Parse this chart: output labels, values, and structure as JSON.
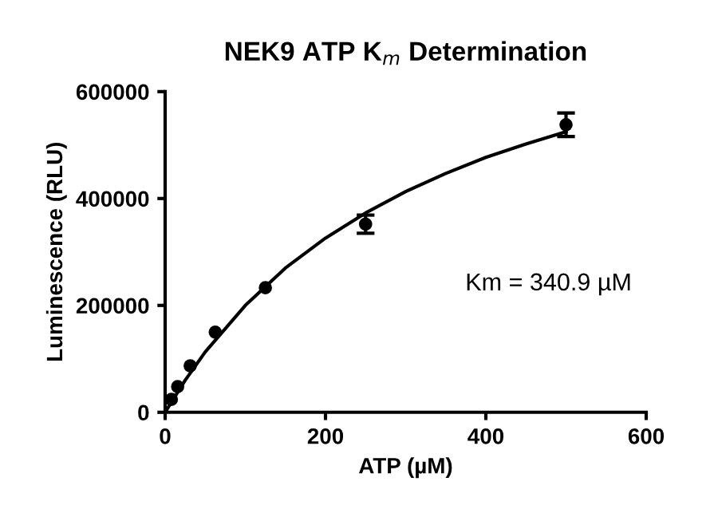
{
  "chart_data": {
    "type": "scatter",
    "title": "NEK9 ATP K$_{m}$ Determination",
    "xlabel": "ATP (µM)",
    "ylabel": "Luminescence (RLU)",
    "xlim": [
      0,
      600
    ],
    "xticks": [
      0,
      200,
      400,
      600
    ],
    "ylim": [
      0,
      600000
    ],
    "yticks": [
      0,
      200000,
      400000,
      600000
    ],
    "grid": false,
    "marker": "circle",
    "annotations": [
      "Km = 340.9 µM"
    ],
    "series": [
      {
        "color": "#000000",
        "x": [
          7.8,
          15.6,
          31.25,
          62.5,
          125,
          250,
          500
        ],
        "values": [
          24000,
          48000,
          87000,
          150000,
          233000,
          352000,
          538000
        ],
        "errors": [
          null,
          null,
          null,
          null,
          null,
          17000,
          22000
        ]
      },
      {
        "type": "line",
        "color": "#000000",
        "marker": "none",
        "line_style": "solid",
        "x": [
          0,
          25,
          50,
          100,
          150,
          200,
          250,
          300,
          350,
          400,
          450,
          500
        ],
        "values": [
          0,
          60000,
          113000,
          200000,
          270000,
          326000,
          373000,
          413000,
          447000,
          477000,
          502000,
          525000
        ]
      }
    ]
  }
}
